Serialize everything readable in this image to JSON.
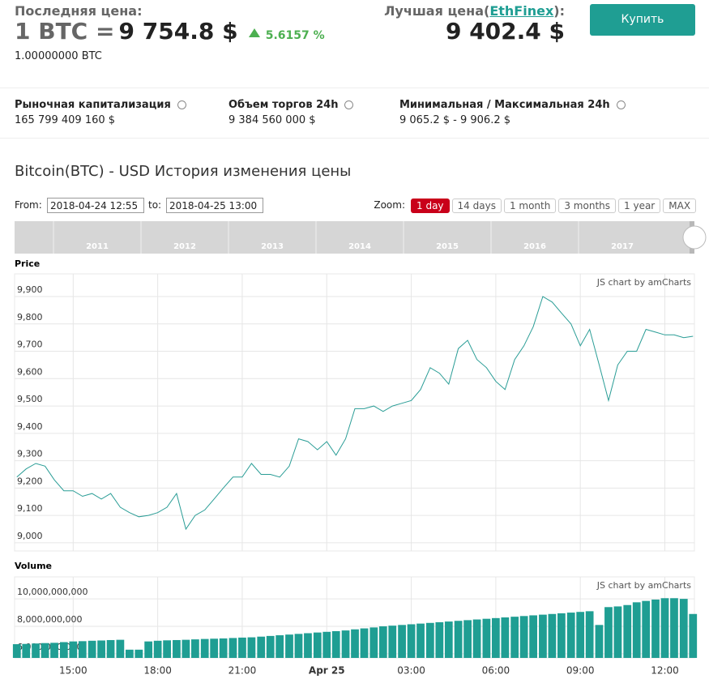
{
  "header": {
    "last_price_label": "Последняя цена:",
    "last_price_unit": "1 BTC =",
    "last_price": "9 754.8 $",
    "change": "5.6157 %",
    "btc_amount": "1.00000000 BTC",
    "best_price_prefix": "Лучшая цена(",
    "best_price_exchange": "EthFinex",
    "best_price_suffix": "):",
    "best_price": "9 402.4 $",
    "buy_button": "Купить"
  },
  "stats": [
    {
      "label": "Рыночная капитализация",
      "value": "165 799 409 160 $"
    },
    {
      "label": "Объем торгов 24h",
      "value": "9 384 560 000 $"
    },
    {
      "label": "Минимальная / Максимальная 24h",
      "value": "9 065.2 $ - 9 906.2 $"
    }
  ],
  "history_title": "Bitcoin(BTC) - USD История изменения цены",
  "range": {
    "from_label": "From:",
    "from": "2018-04-24 12:55",
    "to_label": "to:",
    "to": "2018-04-25 13:00"
  },
  "zoom": {
    "label": "Zoom:",
    "options": [
      "1 day",
      "14 days",
      "1 month",
      "3 months",
      "1 year",
      "MAX"
    ],
    "active": 0
  },
  "navigator": {
    "years": [
      "2011",
      "2012",
      "2013",
      "2014",
      "2015",
      "2016",
      "2017"
    ]
  },
  "chart_data": [
    {
      "type": "line",
      "title": "Price",
      "credit": "JS chart by amCharts",
      "color": "#2a9d96",
      "grid": true,
      "x": [
        13,
        13.33,
        13.67,
        14,
        14.33,
        14.67,
        15,
        15.33,
        15.67,
        16,
        16.33,
        16.67,
        17,
        17.33,
        17.67,
        18,
        18.33,
        18.67,
        19,
        19.33,
        19.67,
        20,
        20.33,
        20.67,
        21,
        21.33,
        21.67,
        22,
        22.33,
        22.67,
        23,
        23.33,
        23.67,
        24,
        24.33,
        24.67,
        25,
        25.33,
        25.67,
        26,
        26.33,
        26.67,
        27,
        27.33,
        27.67,
        28,
        28.33,
        28.67,
        29,
        29.33,
        29.67,
        30,
        30.33,
        30.67,
        31,
        31.33,
        31.67,
        32,
        32.33,
        32.67,
        33,
        33.33,
        33.67,
        34,
        34.33,
        34.67,
        35,
        35.33,
        35.67,
        36,
        36.33,
        36.67,
        37
      ],
      "values": [
        9240,
        9270,
        9290,
        9280,
        9230,
        9190,
        9190,
        9170,
        9180,
        9160,
        9180,
        9130,
        9110,
        9095,
        9100,
        9110,
        9130,
        9180,
        9050,
        9100,
        9120,
        9160,
        9200,
        9240,
        9240,
        9290,
        9250,
        9250,
        9240,
        9280,
        9380,
        9370,
        9340,
        9370,
        9320,
        9380,
        9490,
        9490,
        9500,
        9480,
        9500,
        9510,
        9520,
        9560,
        9640,
        9620,
        9580,
        9710,
        9740,
        9670,
        9640,
        9590,
        9560,
        9670,
        9720,
        9790,
        9900,
        9880,
        9840,
        9800,
        9720,
        9780,
        9650,
        9520,
        9650,
        9700,
        9700,
        9780,
        9770,
        9760,
        9760,
        9750,
        9755
      ],
      "xlim": [
        12.92,
        37.05
      ],
      "ylim": [
        8970,
        9983
      ],
      "yticks": [
        {
          "value": 9000,
          "label": "9,000"
        },
        {
          "value": 9100,
          "label": "9,100"
        },
        {
          "value": 9200,
          "label": "9,200"
        },
        {
          "value": 9300,
          "label": "9,300"
        },
        {
          "value": 9400,
          "label": "9,400"
        },
        {
          "value": 9500,
          "label": "9,500"
        },
        {
          "value": 9600,
          "label": "9,600"
        },
        {
          "value": 9700,
          "label": "9,700"
        },
        {
          "value": 9800,
          "label": "9,800"
        },
        {
          "value": 9900,
          "label": "9,900"
        }
      ]
    },
    {
      "type": "bar",
      "title": "Volume",
      "credit": "JS chart by amCharts",
      "color": "#1f9e93",
      "grid": true,
      "x": [
        13,
        13.33,
        13.67,
        14,
        14.33,
        14.67,
        15,
        15.33,
        15.67,
        16,
        16.33,
        16.67,
        17,
        17.33,
        17.67,
        18,
        18.33,
        18.67,
        19,
        19.33,
        19.67,
        20,
        20.33,
        20.67,
        21,
        21.33,
        21.67,
        22,
        22.33,
        22.67,
        23,
        23.33,
        23.67,
        24,
        24.33,
        24.67,
        25,
        25.33,
        25.67,
        26,
        26.33,
        26.67,
        27,
        27.33,
        27.67,
        28,
        28.33,
        28.67,
        29,
        29.33,
        29.67,
        30,
        30.33,
        30.67,
        31,
        31.33,
        31.67,
        32,
        32.33,
        32.67,
        33,
        33.33,
        33.67,
        34,
        34.33,
        34.67,
        35,
        35.33,
        35.67,
        36,
        36.33,
        36.67,
        37
      ],
      "values": [
        6700000000,
        6720000000,
        6750000000,
        6780000000,
        6800000000,
        6850000000,
        6900000000,
        6920000000,
        6950000000,
        6970000000,
        7000000000,
        7020000000,
        6300000000,
        6300000000,
        6900000000,
        6950000000,
        6980000000,
        7000000000,
        7020000000,
        7050000000,
        7080000000,
        7100000000,
        7120000000,
        7150000000,
        7180000000,
        7200000000,
        7250000000,
        7300000000,
        7350000000,
        7400000000,
        7450000000,
        7500000000,
        7550000000,
        7600000000,
        7650000000,
        7700000000,
        7780000000,
        7850000000,
        7920000000,
        8000000000,
        8050000000,
        8100000000,
        8150000000,
        8200000000,
        8250000000,
        8300000000,
        8350000000,
        8400000000,
        8450000000,
        8500000000,
        8550000000,
        8600000000,
        8650000000,
        8700000000,
        8750000000,
        8800000000,
        8850000000,
        8900000000,
        8950000000,
        9000000000,
        9050000000,
        9100000000,
        8100000000,
        9400000000,
        9450000000,
        9550000000,
        9750000000,
        9850000000,
        9950000000,
        10050000000,
        10050000000,
        10000000000,
        8900000000
      ],
      "xlim": [
        12.92,
        37.05
      ],
      "ylim": [
        5700000000,
        11600000000
      ],
      "yticks": [
        {
          "value": 6000000000,
          "label": "6,000,000,000"
        },
        {
          "value": 8000000000,
          "label": "8,000,000,000"
        },
        {
          "value": 10000000000,
          "label": "10,000,000,000"
        }
      ],
      "xticks": [
        {
          "value": 15,
          "label": "15:00"
        },
        {
          "value": 18,
          "label": "18:00"
        },
        {
          "value": 21,
          "label": "21:00"
        },
        {
          "value": 24,
          "label": "Apr 25"
        },
        {
          "value": 27,
          "label": "03:00"
        },
        {
          "value": 30,
          "label": "06:00"
        },
        {
          "value": 33,
          "label": "09:00"
        },
        {
          "value": 36,
          "label": "12:00"
        }
      ]
    }
  ]
}
